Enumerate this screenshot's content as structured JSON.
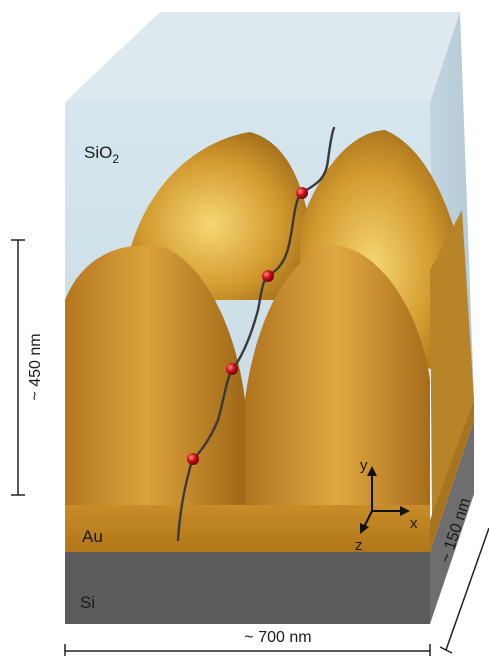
{
  "labels": {
    "sio2_main": "SiO",
    "sio2_sub": "2",
    "au": "Au",
    "si": "Si",
    "height": "~ 450 nm",
    "width": "~ 700 nm",
    "depth": "~ 150 nm"
  },
  "axes": {
    "x": "x",
    "y": "y",
    "z": "z"
  },
  "colors": {
    "sio2": "#d4e5ec",
    "gold_light": "#f0c85a",
    "gold_mid": "#c88a1e",
    "gold_dark": "#8a5a14",
    "si": "#5a5a5a",
    "particle": "#c8101a",
    "path": "#3a3a3a"
  }
}
